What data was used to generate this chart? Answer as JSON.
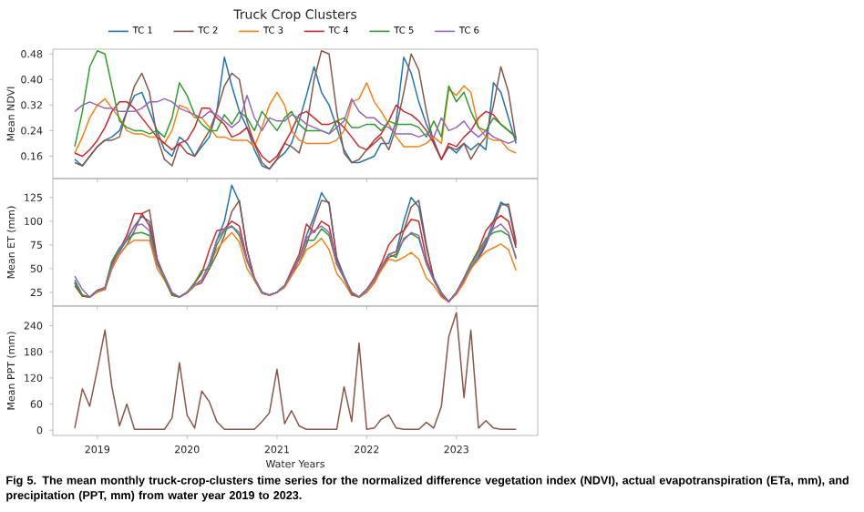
{
  "chart_data": [
    {
      "type": "line",
      "ylabel": "Mean NDVI",
      "legend_title": "Truck Crop Clusters",
      "legend": "top",
      "tick_labels": "y",
      "x": [
        "2018-10",
        "2018-11",
        "2018-12",
        "2019-01",
        "2019-02",
        "2019-03",
        "2019-04",
        "2019-05",
        "2019-06",
        "2019-07",
        "2019-08",
        "2019-09",
        "2019-10",
        "2019-11",
        "2019-12",
        "2020-01",
        "2020-02",
        "2020-03",
        "2020-04",
        "2020-05",
        "2020-06",
        "2020-07",
        "2020-08",
        "2020-09",
        "2020-10",
        "2020-11",
        "2020-12",
        "2021-01",
        "2021-02",
        "2021-03",
        "2021-04",
        "2021-05",
        "2021-06",
        "2021-07",
        "2021-08",
        "2021-09",
        "2021-10",
        "2021-11",
        "2021-12",
        "2022-01",
        "2022-02",
        "2022-03",
        "2022-04",
        "2022-05",
        "2022-06",
        "2022-07",
        "2022-08",
        "2022-09",
        "2022-10",
        "2022-11",
        "2022-12",
        "2023-01",
        "2023-02",
        "2023-03",
        "2023-04",
        "2023-05",
        "2023-06",
        "2023-07",
        "2023-08",
        "2023-09"
      ],
      "xlim": [
        "2018-07-04",
        "2023-11-28"
      ],
      "xticks": [
        "2019",
        "2020",
        "2021",
        "2022",
        "2023"
      ],
      "ylim": [
        0.09,
        0.495
      ],
      "yticks": [
        0.16,
        0.24,
        0.32,
        {
          "value": 0.4,
          "label": "0.40"
        },
        0.48
      ],
      "series": [
        {
          "name": "TC 1",
          "color": "#1f77b4",
          "values": [
            0.15,
            0.13,
            0.16,
            0.19,
            0.21,
            0.22,
            0.24,
            0.3,
            0.35,
            0.36,
            0.3,
            0.24,
            0.18,
            0.16,
            0.22,
            0.2,
            0.16,
            0.19,
            0.22,
            0.3,
            0.47,
            0.38,
            0.3,
            0.25,
            0.18,
            0.13,
            0.12,
            0.15,
            0.17,
            0.2,
            0.27,
            0.35,
            0.44,
            0.36,
            0.32,
            0.25,
            0.18,
            0.14,
            0.14,
            0.15,
            0.16,
            0.2,
            0.2,
            0.27,
            0.47,
            0.42,
            0.33,
            0.26,
            0.21,
            0.15,
            0.19,
            0.17,
            0.2,
            0.18,
            0.2,
            0.18,
            0.39,
            0.36,
            0.28,
            0.2
          ]
        },
        {
          "name": "TC 2",
          "color": "#8c564b",
          "values": [
            0.14,
            0.13,
            0.16,
            0.19,
            0.21,
            0.21,
            0.22,
            0.3,
            0.38,
            0.42,
            0.36,
            0.22,
            0.15,
            0.13,
            0.2,
            0.17,
            0.16,
            0.2,
            0.24,
            0.3,
            0.38,
            0.42,
            0.4,
            0.27,
            0.2,
            0.14,
            0.12,
            0.15,
            0.2,
            0.19,
            0.17,
            0.25,
            0.4,
            0.49,
            0.48,
            0.3,
            0.17,
            0.14,
            0.15,
            0.18,
            0.2,
            0.22,
            0.18,
            0.25,
            0.36,
            0.48,
            0.43,
            0.3,
            0.2,
            0.15,
            0.19,
            0.18,
            0.2,
            0.15,
            0.19,
            0.22,
            0.32,
            0.44,
            0.36,
            0.21
          ]
        },
        {
          "name": "TC 3",
          "color": "#ff7f0e",
          "values": [
            0.17,
            0.22,
            0.28,
            0.32,
            0.34,
            0.31,
            0.28,
            0.24,
            0.23,
            0.23,
            0.22,
            0.22,
            0.2,
            0.24,
            0.32,
            0.31,
            0.28,
            0.28,
            0.25,
            0.22,
            0.22,
            0.21,
            0.21,
            0.21,
            0.19,
            0.25,
            0.32,
            0.36,
            0.32,
            0.24,
            0.21,
            0.2,
            0.2,
            0.2,
            0.2,
            0.21,
            0.24,
            0.33,
            0.34,
            0.39,
            0.33,
            0.3,
            0.26,
            0.22,
            0.19,
            0.19,
            0.19,
            0.2,
            0.22,
            0.2,
            0.37,
            0.35,
            0.38,
            0.36,
            0.25,
            0.22,
            0.21,
            0.21,
            0.18,
            0.17
          ]
        },
        {
          "name": "TC 4",
          "color": "#d62728",
          "values": [
            0.17,
            0.16,
            0.18,
            0.21,
            0.25,
            0.3,
            0.33,
            0.33,
            0.31,
            0.28,
            0.25,
            0.22,
            0.2,
            0.18,
            0.2,
            0.21,
            0.25,
            0.31,
            0.31,
            0.28,
            0.26,
            0.22,
            0.23,
            0.25,
            0.2,
            0.16,
            0.14,
            0.16,
            0.2,
            0.24,
            0.29,
            0.3,
            0.28,
            0.26,
            0.26,
            0.27,
            0.25,
            0.22,
            0.19,
            0.18,
            0.21,
            0.23,
            0.27,
            0.32,
            0.3,
            0.29,
            0.27,
            0.24,
            0.2,
            0.15,
            0.2,
            0.19,
            0.22,
            0.24,
            0.28,
            0.3,
            0.29,
            0.26,
            0.24,
            0.22
          ]
        },
        {
          "name": "TC 5",
          "color": "#2ca02c",
          "values": [
            0.19,
            0.3,
            0.44,
            0.49,
            0.48,
            0.38,
            0.27,
            0.25,
            0.24,
            0.24,
            0.23,
            0.24,
            0.22,
            0.28,
            0.39,
            0.35,
            0.29,
            0.26,
            0.24,
            0.24,
            0.29,
            0.26,
            0.3,
            0.28,
            0.24,
            0.3,
            0.27,
            0.24,
            0.28,
            0.3,
            0.26,
            0.24,
            0.24,
            0.24,
            0.23,
            0.27,
            0.28,
            0.25,
            0.25,
            0.26,
            0.26,
            0.24,
            0.27,
            0.26,
            0.26,
            0.26,
            0.25,
            0.22,
            0.27,
            0.22,
            0.38,
            0.33,
            0.36,
            0.3,
            0.25,
            0.24,
            0.28,
            0.26,
            0.24,
            0.22
          ]
        },
        {
          "name": "TC 6",
          "color": "#9467bd",
          "values": [
            0.3,
            0.32,
            0.33,
            0.32,
            0.31,
            0.31,
            0.3,
            0.3,
            0.3,
            0.31,
            0.33,
            0.33,
            0.34,
            0.33,
            0.31,
            0.3,
            0.29,
            0.28,
            0.3,
            0.29,
            0.27,
            0.25,
            0.27,
            0.35,
            0.28,
            0.24,
            0.28,
            0.27,
            0.27,
            0.29,
            0.28,
            0.26,
            0.25,
            0.24,
            0.23,
            0.25,
            0.27,
            0.34,
            0.3,
            0.28,
            0.28,
            0.26,
            0.25,
            0.23,
            0.23,
            0.23,
            0.22,
            0.23,
            0.22,
            0.28,
            0.24,
            0.25,
            0.27,
            0.24,
            0.22,
            0.24,
            0.22,
            0.21,
            0.2,
            0.21
          ]
        }
      ]
    },
    {
      "type": "line",
      "ylabel": "Mean ET (mm)",
      "tick_labels": "y",
      "x": [
        "2018-10",
        "2018-11",
        "2018-12",
        "2019-01",
        "2019-02",
        "2019-03",
        "2019-04",
        "2019-05",
        "2019-06",
        "2019-07",
        "2019-08",
        "2019-09",
        "2019-10",
        "2019-11",
        "2019-12",
        "2020-01",
        "2020-02",
        "2020-03",
        "2020-04",
        "2020-05",
        "2020-06",
        "2020-07",
        "2020-08",
        "2020-09",
        "2020-10",
        "2020-11",
        "2020-12",
        "2021-01",
        "2021-02",
        "2021-03",
        "2021-04",
        "2021-05",
        "2021-06",
        "2021-07",
        "2021-08",
        "2021-09",
        "2021-10",
        "2021-11",
        "2021-12",
        "2022-01",
        "2022-02",
        "2022-03",
        "2022-04",
        "2022-05",
        "2022-06",
        "2022-07",
        "2022-08",
        "2022-09",
        "2022-10",
        "2022-11",
        "2022-12",
        "2023-01",
        "2023-02",
        "2023-03",
        "2023-04",
        "2023-05",
        "2023-06",
        "2023-07",
        "2023-08",
        "2023-09"
      ],
      "xlim": [
        "2018-07-04",
        "2023-11-28"
      ],
      "xticks": [
        "2019",
        "2020",
        "2021",
        "2022",
        "2023"
      ],
      "ylim": [
        10.5,
        145
      ],
      "yticks": [
        25,
        50,
        75,
        100,
        125
      ],
      "series": [
        {
          "color": "#1f77b4",
          "values": [
            38,
            22,
            20,
            27,
            28,
            55,
            68,
            80,
            95,
            105,
            100,
            60,
            42,
            24,
            20,
            25,
            32,
            38,
            55,
            80,
            100,
            138,
            120,
            70,
            40,
            25,
            22,
            25,
            32,
            45,
            60,
            85,
            105,
            130,
            118,
            62,
            42,
            25,
            20,
            28,
            35,
            50,
            65,
            68,
            100,
            125,
            115,
            72,
            40,
            25,
            15,
            25,
            38,
            50,
            62,
            78,
            100,
            120,
            115,
            75
          ]
        },
        {
          "color": "#8c564b",
          "values": [
            35,
            21,
            20,
            26,
            28,
            50,
            65,
            75,
            90,
            108,
            112,
            60,
            40,
            22,
            20,
            25,
            32,
            35,
            50,
            65,
            85,
            110,
            122,
            70,
            38,
            24,
            22,
            25,
            32,
            45,
            55,
            75,
            100,
            122,
            120,
            60,
            40,
            25,
            20,
            25,
            35,
            50,
            62,
            65,
            90,
            115,
            122,
            75,
            38,
            24,
            15,
            25,
            38,
            50,
            60,
            75,
            95,
            117,
            118,
            78
          ]
        },
        {
          "color": "#ff7f0e",
          "values": [
            35,
            21,
            20,
            25,
            28,
            50,
            65,
            75,
            80,
            80,
            80,
            50,
            38,
            22,
            20,
            24,
            32,
            38,
            55,
            70,
            80,
            88,
            78,
            50,
            38,
            24,
            22,
            25,
            30,
            42,
            55,
            70,
            75,
            82,
            70,
            45,
            35,
            22,
            20,
            26,
            35,
            48,
            60,
            58,
            62,
            67,
            60,
            40,
            32,
            20,
            15,
            23,
            35,
            50,
            60,
            68,
            72,
            76,
            70,
            48
          ]
        },
        {
          "color": "#d62728",
          "values": [
            32,
            21,
            20,
            27,
            30,
            55,
            70,
            85,
            108,
            108,
            95,
            55,
            40,
            22,
            20,
            25,
            35,
            45,
            70,
            90,
            92,
            100,
            95,
            60,
            40,
            25,
            22,
            25,
            32,
            48,
            65,
            97,
            88,
            100,
            95,
            55,
            40,
            23,
            20,
            28,
            40,
            55,
            75,
            85,
            90,
            102,
            100,
            60,
            38,
            22,
            15,
            25,
            40,
            55,
            70,
            90,
            100,
            106,
            100,
            72
          ]
        },
        {
          "color": "#2ca02c",
          "values": [
            35,
            22,
            20,
            27,
            30,
            58,
            72,
            80,
            87,
            88,
            85,
            55,
            40,
            23,
            20,
            25,
            35,
            48,
            50,
            75,
            90,
            95,
            85,
            58,
            40,
            25,
            22,
            25,
            32,
            45,
            60,
            80,
            80,
            92,
            85,
            55,
            40,
            24,
            20,
            28,
            38,
            52,
            65,
            62,
            82,
            87,
            82,
            55,
            38,
            23,
            15,
            25,
            40,
            55,
            68,
            82,
            88,
            90,
            85,
            62
          ]
        },
        {
          "color": "#9467bd",
          "values": [
            42,
            28,
            20,
            27,
            30,
            52,
            70,
            82,
            95,
            97,
            90,
            55,
            42,
            25,
            20,
            25,
            33,
            38,
            55,
            80,
            92,
            95,
            88,
            58,
            40,
            25,
            22,
            25,
            32,
            45,
            62,
            82,
            90,
            95,
            88,
            55,
            40,
            25,
            20,
            28,
            38,
            52,
            65,
            68,
            80,
            88,
            85,
            55,
            38,
            24,
            15,
            25,
            40,
            52,
            65,
            80,
            92,
            97,
            88,
            60
          ]
        }
      ]
    },
    {
      "type": "line",
      "ylabel": "Mean PPT (mm)",
      "xlabel": "Water Years",
      "annotations": [
        "Fig 5.  The mean monthly truck-crop-clusters time series for the normalized difference vegetation index (NDVI), actual evapotranspiration (ETa, mm), and precipitation (PPT, mm) from water year 2019 to 2023."
      ],
      "x": [
        "2018-10",
        "2018-11",
        "2018-12",
        "2019-01",
        "2019-02",
        "2019-03",
        "2019-04",
        "2019-05",
        "2019-06",
        "2019-07",
        "2019-08",
        "2019-09",
        "2019-10",
        "2019-11",
        "2019-12",
        "2020-01",
        "2020-02",
        "2020-03",
        "2020-04",
        "2020-05",
        "2020-06",
        "2020-07",
        "2020-08",
        "2020-09",
        "2020-10",
        "2020-11",
        "2020-12",
        "2021-01",
        "2021-02",
        "2021-03",
        "2021-04",
        "2021-05",
        "2021-06",
        "2021-07",
        "2021-08",
        "2021-09",
        "2021-10",
        "2021-11",
        "2021-12",
        "2022-01",
        "2022-02",
        "2022-03",
        "2022-04",
        "2022-05",
        "2022-06",
        "2022-07",
        "2022-08",
        "2022-09",
        "2022-10",
        "2022-11",
        "2022-12",
        "2023-01",
        "2023-02",
        "2023-03",
        "2023-04",
        "2023-05",
        "2023-06",
        "2023-07",
        "2023-08",
        "2023-09"
      ],
      "xlim": [
        "2018-07-04",
        "2023-11-28"
      ],
      "xticks": [
        "2019",
        "2020",
        "2021",
        "2022",
        "2023"
      ],
      "ylim": [
        -12,
        285
      ],
      "yticks": [
        0,
        60,
        120,
        180,
        240
      ],
      "series": [
        {
          "color": "#8c564b",
          "values": [
            5,
            95,
            55,
            140,
            230,
            100,
            10,
            60,
            2,
            2,
            2,
            2,
            2,
            28,
            155,
            35,
            5,
            90,
            65,
            20,
            2,
            2,
            2,
            2,
            2,
            20,
            40,
            140,
            15,
            45,
            10,
            2,
            2,
            2,
            2,
            2,
            100,
            20,
            200,
            2,
            5,
            25,
            35,
            5,
            2,
            2,
            2,
            18,
            5,
            55,
            215,
            270,
            75,
            230,
            5,
            22,
            5,
            2,
            2,
            2
          ]
        }
      ]
    }
  ]
}
